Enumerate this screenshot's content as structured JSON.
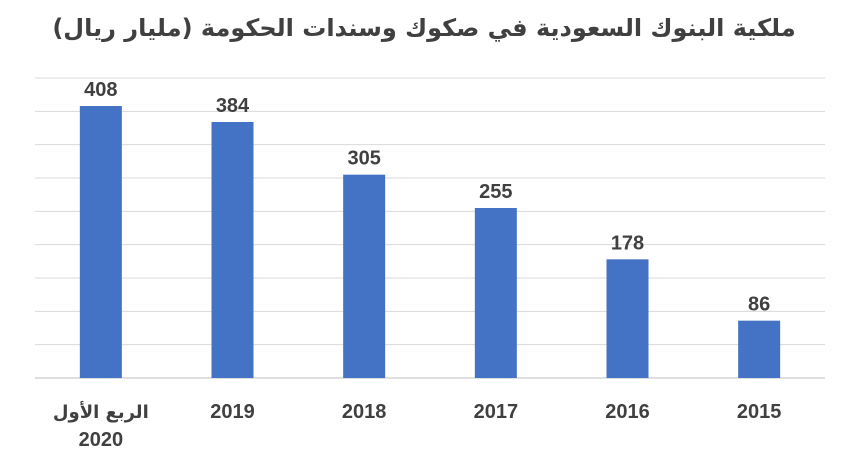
{
  "chart_data": {
    "type": "bar",
    "title": "ملكية البنوك السعودية في صكوك وسندات الحكومة (مليار ريال)",
    "xlabel": "",
    "ylabel": "",
    "categories": [
      [
        "الربع الأول",
        "2020"
      ],
      [
        "2019"
      ],
      [
        "2018"
      ],
      [
        "2017"
      ],
      [
        "2016"
      ],
      [
        "2015"
      ]
    ],
    "values": [
      408,
      384,
      305,
      255,
      178,
      86
    ],
    "ylim": [
      0,
      450
    ],
    "grid": true,
    "bar_color": "#4472c4"
  }
}
